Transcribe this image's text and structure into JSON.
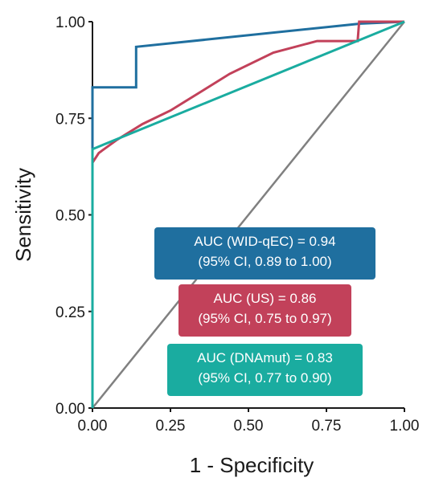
{
  "chart_data": {
    "type": "line",
    "xlabel": "1 - Specificity",
    "ylabel": "Sensitivity",
    "xlim": [
      0,
      1
    ],
    "ylim": [
      0,
      1
    ],
    "x_ticks": [
      "0.00",
      "0.25",
      "0.50",
      "0.75",
      "1.00"
    ],
    "y_ticks": [
      "0.00",
      "0.25",
      "0.50",
      "0.75",
      "1.00"
    ],
    "grid": false,
    "reference_line": {
      "x": [
        0,
        1
      ],
      "y": [
        0,
        1
      ],
      "color": "#808080"
    },
    "series": [
      {
        "key": "wid",
        "color": "#1f6f9f",
        "points": [
          [
            0,
            0
          ],
          [
            0,
            0.83
          ],
          [
            0.14,
            0.83
          ],
          [
            0.14,
            0.935
          ],
          [
            0.86,
            0.995
          ],
          [
            1,
            1
          ]
        ],
        "annotation": [
          "AUC (WID-qEC) = 0.94",
          "(95% CI, 0.89 to 1.00)"
        ]
      },
      {
        "key": "us",
        "color": "#c2415a",
        "points": [
          [
            0,
            0.635
          ],
          [
            0.02,
            0.66
          ],
          [
            0.08,
            0.695
          ],
          [
            0.16,
            0.735
          ],
          [
            0.25,
            0.77
          ],
          [
            0.35,
            0.82
          ],
          [
            0.44,
            0.865
          ],
          [
            0.58,
            0.92
          ],
          [
            0.72,
            0.95
          ],
          [
            0.85,
            0.95
          ],
          [
            0.855,
            1.0
          ],
          [
            1,
            1
          ]
        ],
        "annotation": [
          "AUC (US) = 0.86",
          "(95% CI, 0.75 to 0.97)"
        ]
      },
      {
        "key": "dnamut",
        "color": "#1aaca0",
        "points": [
          [
            0,
            0
          ],
          [
            0,
            0.67
          ],
          [
            1,
            1
          ]
        ],
        "annotation": [
          "AUC (DNAmut) = 0.83",
          "(95% CI, 0.77 to 0.90)"
        ]
      }
    ]
  }
}
